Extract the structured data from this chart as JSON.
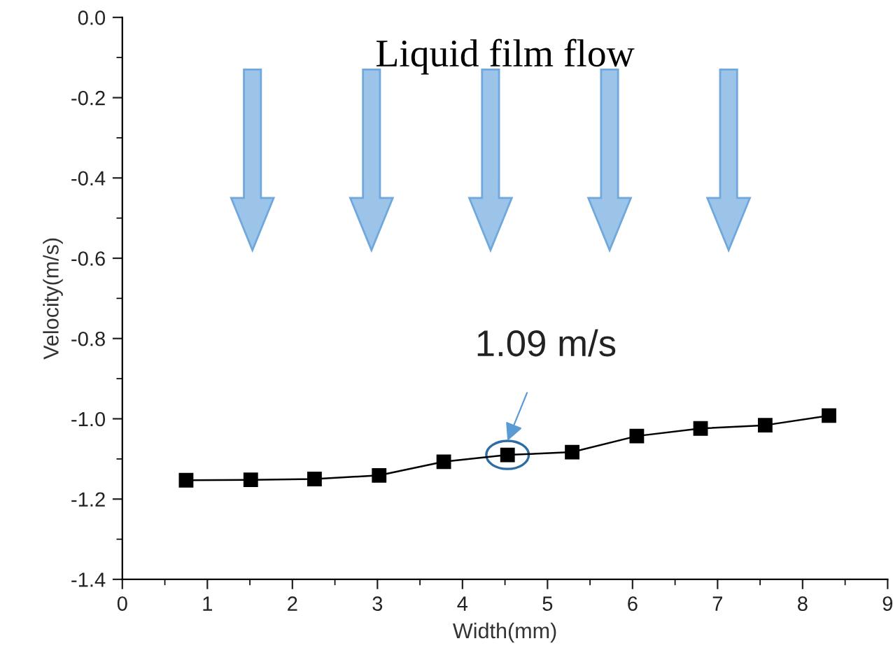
{
  "chart_data": {
    "type": "line",
    "xlabel": "Width(mm)",
    "ylabel": "Velocity(m/s)",
    "x": [
      0.75,
      1.51,
      2.26,
      3.02,
      3.78,
      4.53,
      5.29,
      6.05,
      6.8,
      7.56,
      8.31
    ],
    "series": [
      {
        "color": "#000000",
        "values": [
          -1.153,
          -1.152,
          -1.15,
          -1.141,
          -1.107,
          -1.09,
          -1.083,
          -1.043,
          -1.024,
          -1.016,
          -0.992
        ]
      }
    ],
    "xlim": [
      0,
      9
    ],
    "ylim": [
      -1.4,
      0.0
    ],
    "xticks": [
      0,
      1,
      2,
      3,
      4,
      5,
      6,
      7,
      8,
      9
    ],
    "yticks": [
      {
        "value": -1.4,
        "label": "-1.4"
      },
      {
        "value": -1.2,
        "label": "-1.2"
      },
      {
        "value": -1.0,
        "label": "-1.0"
      },
      {
        "value": -0.8,
        "label": "-0.8"
      },
      {
        "value": -0.6,
        "label": "-0.6"
      },
      {
        "value": -0.4,
        "label": "-0.4"
      },
      {
        "value": -0.2,
        "label": "-0.2"
      },
      {
        "value": 0.0,
        "label": "0.0"
      }
    ],
    "marker": "square",
    "line_style": "solid",
    "grid": false,
    "legend": false,
    "annotations": [
      "Liquid film flow",
      {
        "text": "1.09 m/s",
        "x": 4.53,
        "y": -1.09
      }
    ]
  }
}
